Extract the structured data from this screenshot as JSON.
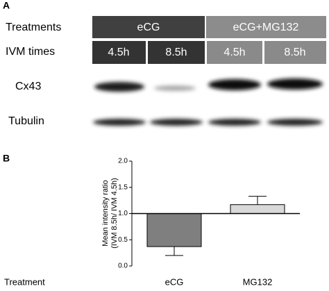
{
  "panel_a": {
    "label": "A",
    "rows": [
      "Treatments",
      "IVM times",
      "Cx43",
      "Tubulin"
    ],
    "treatments": [
      "eCG",
      "eCG+MG132"
    ],
    "times": [
      "4.5h",
      "8.5h",
      "4.5h",
      "8.5h"
    ]
  },
  "chart_data": {
    "type": "bar",
    "panel_label": "B",
    "y_label": [
      "Mean intensity ratio",
      "(IVM 8.5h/ IVM 4.5h)"
    ],
    "x_label": "Treatment",
    "categories": [
      "eCG",
      "MG132"
    ],
    "series": [
      {
        "colors": [
          "#7f7f7f",
          "#d9d9d9"
        ],
        "values": [
          0.37,
          1.17
        ],
        "errors": [
          0.17,
          0.16
        ]
      }
    ],
    "baseline": 1,
    "ylim": [
      0,
      2
    ],
    "yticks": [
      {
        "value": 0,
        "label": "0.0"
      },
      {
        "value": 0.5,
        "label": "0.5"
      },
      {
        "value": 1,
        "label": "1.0"
      },
      {
        "value": 1.5,
        "label": "1.5"
      },
      {
        "value": 2,
        "label": "2.0"
      }
    ]
  }
}
